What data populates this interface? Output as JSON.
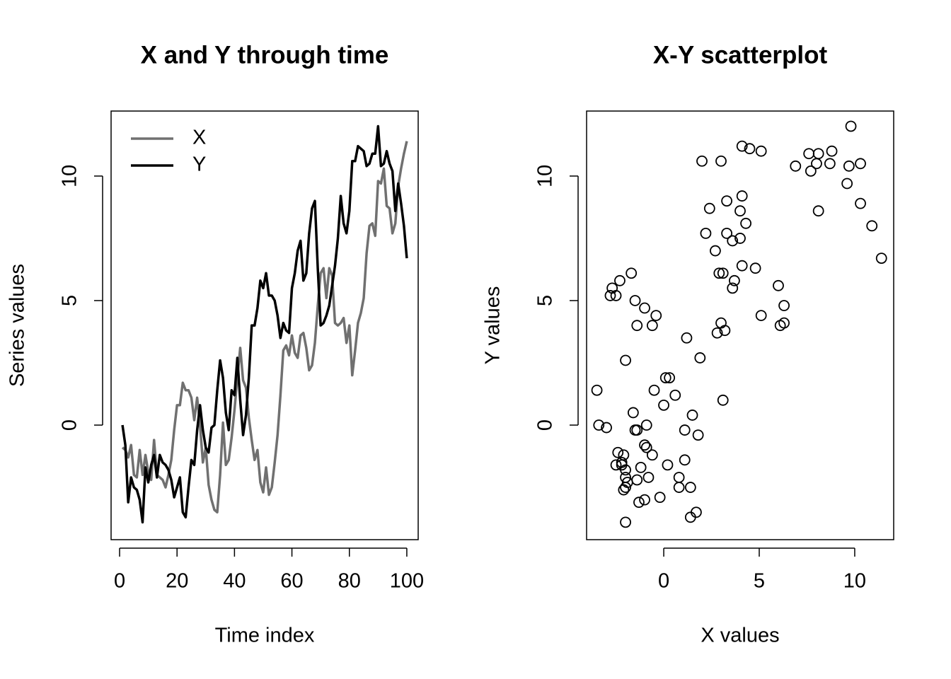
{
  "chart_data": [
    {
      "type": "line",
      "title": "X and Y through time",
      "x_label": "Time index",
      "y_label": "Series values",
      "x": [
        1,
        2,
        3,
        4,
        5,
        6,
        7,
        8,
        9,
        10,
        11,
        12,
        13,
        14,
        15,
        16,
        17,
        18,
        19,
        20,
        21,
        22,
        23,
        24,
        25,
        26,
        27,
        28,
        29,
        30,
        31,
        32,
        33,
        34,
        35,
        36,
        37,
        38,
        39,
        40,
        41,
        42,
        43,
        44,
        45,
        46,
        47,
        48,
        49,
        50,
        51,
        52,
        53,
        54,
        55,
        56,
        57,
        58,
        59,
        60,
        61,
        62,
        63,
        64,
        65,
        66,
        67,
        68,
        69,
        70,
        71,
        72,
        73,
        74,
        75,
        76,
        77,
        78,
        79,
        80,
        81,
        82,
        83,
        84,
        85,
        86,
        87,
        88,
        89,
        90,
        91,
        92,
        93,
        94,
        95,
        96,
        97,
        98,
        99,
        100
      ],
      "series": [
        {
          "name": "X",
          "color": "#707070",
          "values": [
            -0.9,
            -1.0,
            -1.3,
            -0.8,
            -2.0,
            -2.1,
            -1.0,
            -2.0,
            -1.2,
            -1.9,
            -2.2,
            -0.6,
            -2.0,
            -2.1,
            -2.2,
            -2.5,
            -2.0,
            -1.4,
            -0.2,
            0.8,
            0.8,
            1.7,
            1.4,
            1.4,
            1.1,
            0.2,
            1.1,
            0.0,
            -1.5,
            -0.9,
            -2.4,
            -3.0,
            -3.4,
            -3.5,
            -2.0,
            0.1,
            -1.6,
            -1.4,
            -0.5,
            0.6,
            1.9,
            3.1,
            1.8,
            1.5,
            0.3,
            -0.6,
            -1.4,
            -1.0,
            -2.3,
            -2.7,
            -1.7,
            -2.8,
            -2.5,
            -1.5,
            -0.4,
            1.2,
            3.0,
            3.2,
            2.8,
            3.6,
            2.9,
            2.7,
            3.6,
            3.7,
            3.1,
            2.2,
            2.4,
            3.3,
            4.8,
            6.1,
            6.3,
            5.1,
            6.3,
            6.0,
            4.1,
            4.0,
            4.1,
            4.3,
            3.3,
            4.0,
            2.0,
            3.0,
            4.1,
            4.5,
            5.1,
            6.9,
            8.0,
            8.1,
            7.6,
            9.8,
            9.7,
            10.3,
            8.8,
            8.7,
            7.7,
            8.1,
            9.6,
            10.3,
            10.9,
            11.4
          ]
        },
        {
          "name": "Y",
          "color": "#000000",
          "values": [
            0,
            -0.8,
            -3.1,
            -2.1,
            -2.5,
            -2.6,
            -3.0,
            -3.9,
            -1.7,
            -2.3,
            -1.6,
            -1.2,
            -2.1,
            -1.2,
            -1.5,
            -1.6,
            -1.8,
            -2.2,
            -2.9,
            -2.5,
            -2.1,
            -3.5,
            -3.7,
            -2.5,
            -1.4,
            -1.6,
            -0.2,
            0.8,
            -0.2,
            -0.9,
            -1.1,
            -0.1,
            0.0,
            1.4,
            2.6,
            1.9,
            0.5,
            -0.2,
            1.4,
            1.2,
            2.7,
            1.0,
            -0.4,
            0.4,
            1.9,
            4.0,
            4.0,
            4.7,
            5.8,
            5.5,
            6.1,
            5.2,
            5.2,
            5.0,
            4.4,
            3.5,
            4.1,
            3.8,
            3.7,
            5.5,
            6.1,
            7.0,
            7.4,
            5.8,
            6.1,
            7.7,
            8.7,
            9.0,
            6.3,
            4.0,
            4.1,
            4.4,
            4.8,
            5.6,
            6.4,
            7.5,
            9.2,
            8.1,
            7.7,
            8.6,
            10.6,
            10.6,
            11.2,
            11.1,
            11.0,
            10.4,
            10.5,
            10.9,
            10.9,
            12.0,
            10.4,
            10.5,
            11.0,
            10.5,
            10.2,
            8.6,
            9.7,
            8.9,
            8.0,
            6.7
          ]
        }
      ],
      "xlim": [
        -2.96,
        103.96
      ],
      "xticks": [
        0,
        20,
        40,
        60,
        80,
        100
      ],
      "ylim": [
        -4.6,
        12.61
      ],
      "yticks": [
        0,
        5,
        10
      ],
      "legend": "topleft"
    },
    {
      "type": "scatter",
      "title": "X-Y scatterplot",
      "x_label": "X values",
      "y_label": "Y values",
      "color": "#000000",
      "x": [
        -0.9,
        -1.0,
        -1.3,
        -0.8,
        -2.0,
        -2.1,
        -1.0,
        -2.0,
        -1.2,
        -1.9,
        -2.2,
        -0.6,
        -2.0,
        -2.1,
        -2.2,
        -2.5,
        -2.0,
        -1.4,
        -0.2,
        0.8,
        0.8,
        1.7,
        1.4,
        1.4,
        1.1,
        0.2,
        1.1,
        0.0,
        -1.5,
        -0.9,
        -2.4,
        -3.0,
        -3.4,
        -3.5,
        -2.0,
        0.1,
        -1.6,
        -1.4,
        -0.5,
        0.6,
        1.9,
        3.1,
        1.8,
        1.5,
        0.3,
        -0.6,
        -1.4,
        -1.0,
        -2.3,
        -2.7,
        -1.7,
        -2.8,
        -2.5,
        -1.5,
        -0.4,
        1.2,
        3.0,
        3.2,
        2.8,
        3.6,
        2.9,
        2.7,
        3.6,
        3.7,
        3.1,
        2.2,
        2.4,
        3.3,
        4.8,
        6.1,
        6.3,
        5.1,
        6.3,
        6.0,
        4.1,
        4.0,
        4.1,
        4.3,
        3.3,
        4.0,
        2.0,
        3.0,
        4.1,
        4.5,
        5.1,
        6.9,
        8.0,
        8.1,
        7.6,
        9.8,
        9.7,
        10.3,
        8.8,
        8.7,
        7.7,
        8.1,
        9.6,
        10.3,
        10.9,
        11.4
      ],
      "values": [
        0,
        -0.8,
        -3.1,
        -2.1,
        -2.5,
        -2.6,
        -3.0,
        -3.9,
        -1.7,
        -2.3,
        -1.6,
        -1.2,
        -2.1,
        -1.2,
        -1.5,
        -1.6,
        -1.8,
        -2.2,
        -2.9,
        -2.5,
        -2.1,
        -3.5,
        -3.7,
        -2.5,
        -1.4,
        -1.6,
        -0.2,
        0.8,
        -0.2,
        -0.9,
        -1.1,
        -0.1,
        0.0,
        1.4,
        2.6,
        1.9,
        0.5,
        -0.2,
        1.4,
        1.2,
        2.7,
        1.0,
        -0.4,
        0.4,
        1.9,
        4.0,
        4.0,
        4.7,
        5.8,
        5.5,
        6.1,
        5.2,
        5.2,
        5.0,
        4.4,
        3.5,
        4.1,
        3.8,
        3.7,
        5.5,
        6.1,
        7.0,
        7.4,
        5.8,
        6.1,
        7.7,
        8.7,
        9.0,
        6.3,
        4.0,
        4.1,
        4.4,
        4.8,
        5.6,
        6.4,
        7.5,
        9.2,
        8.1,
        7.7,
        8.6,
        10.6,
        10.6,
        11.2,
        11.1,
        11.0,
        10.4,
        10.5,
        10.9,
        10.9,
        12.0,
        10.4,
        10.5,
        11.0,
        10.5,
        10.2,
        8.6,
        9.7,
        8.9,
        8.0,
        6.7
      ],
      "xlim": [
        -4.04,
        12.04
      ],
      "xticks": [
        0,
        5,
        10
      ],
      "ylim": [
        -4.6,
        12.61
      ],
      "yticks": [
        0,
        5,
        10
      ]
    }
  ]
}
